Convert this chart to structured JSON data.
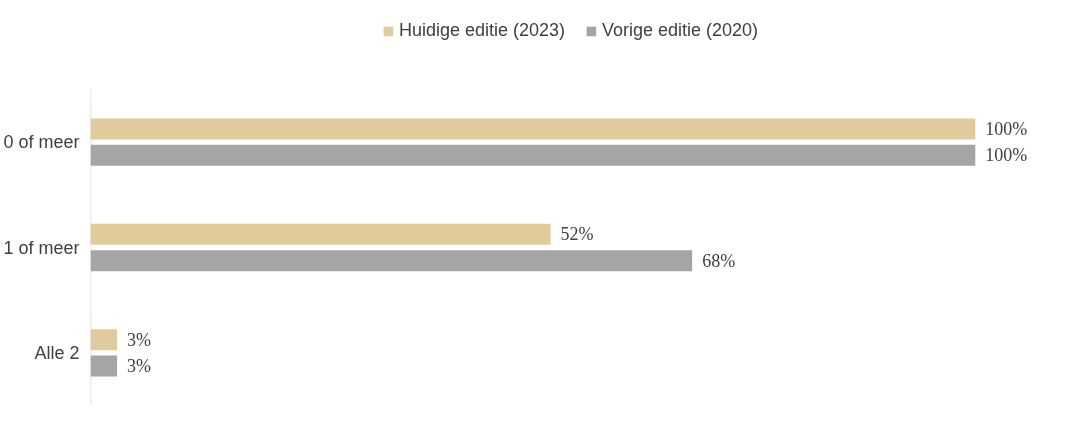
{
  "chart_data": {
    "type": "bar",
    "orientation": "horizontal",
    "categories": [
      "0 of meer",
      "1 of meer",
      "Alle 2"
    ],
    "series": [
      {
        "name": "Huidige editie (2023)",
        "color": "#e0cb9c",
        "values": [
          100,
          52,
          3
        ],
        "value_labels": [
          "100%",
          "52%",
          "3%"
        ]
      },
      {
        "name": "Vorige editie (2020)",
        "color": "#a5a5a5",
        "values": [
          100,
          68,
          3
        ],
        "value_labels": [
          "100%",
          "68%",
          "3%"
        ]
      }
    ],
    "legend": "top"
  }
}
